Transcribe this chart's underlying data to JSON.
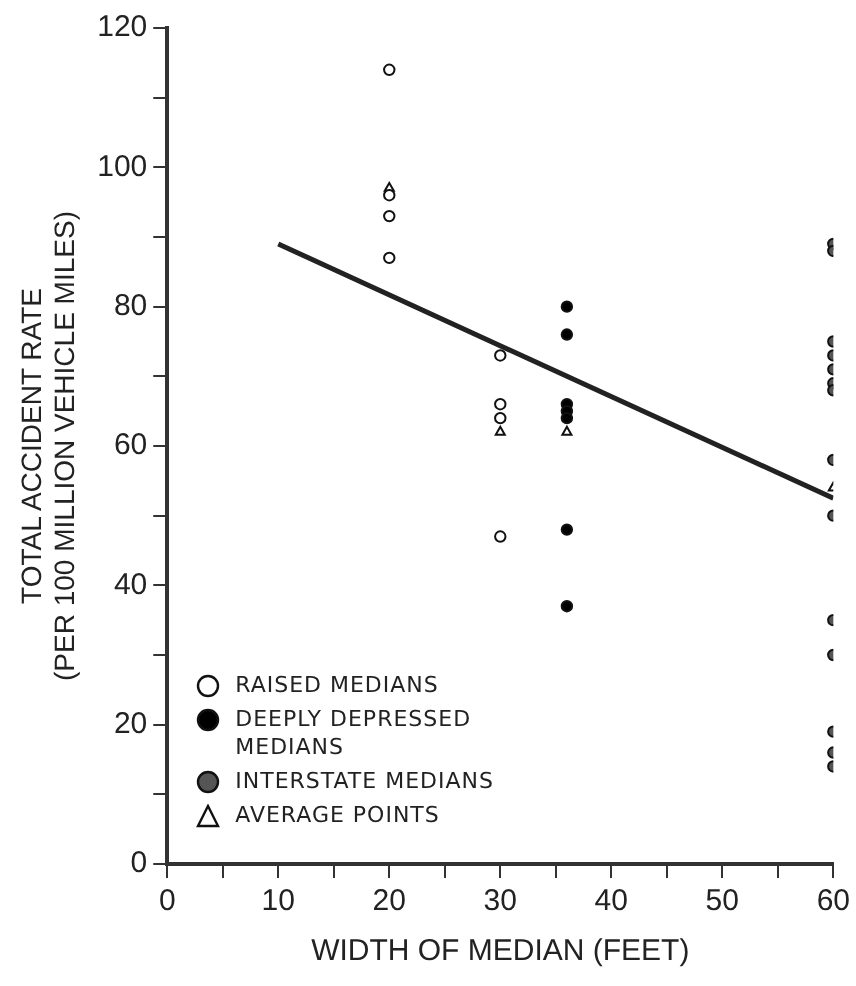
{
  "chart_data": {
    "type": "scatter",
    "xlabel": "WIDTH OF MEDIAN (FEET)",
    "ylabel": "TOTAL ACCIDENT RATE\n(PER 100 MILLION VEHICLE MILES)",
    "xlim": [
      0,
      60
    ],
    "ylim": [
      0,
      120
    ],
    "xticks": [
      0,
      {
        "value": 5,
        "label": null
      },
      10,
      {
        "value": 15,
        "label": null
      },
      20,
      {
        "value": 25,
        "label": null
      },
      30,
      {
        "value": 35,
        "label": null
      },
      40,
      {
        "value": 45,
        "label": null
      },
      50,
      {
        "value": 55,
        "label": null
      },
      60
    ],
    "yticks": [
      0,
      {
        "value": 10,
        "label": null
      },
      20,
      {
        "value": 30,
        "label": null
      },
      40,
      {
        "value": 50,
        "label": null
      },
      60,
      {
        "value": 70,
        "label": null
      },
      80,
      {
        "value": 90,
        "label": null
      },
      100,
      {
        "value": 110,
        "label": null
      },
      120
    ],
    "grid": false,
    "legend": "bottom left",
    "series": [
      {
        "name": "RAISED MEDIANS",
        "color": "#ffffff",
        "marker": "circle",
        "x": [
          20,
          20,
          20,
          20,
          30,
          30,
          30,
          30
        ],
        "values": [
          114,
          96,
          93,
          87,
          73,
          66,
          64,
          47
        ]
      },
      {
        "name": "DEEPLY DEPRESSED MEDIANS",
        "color": "#000000",
        "marker": "circle",
        "x": [
          36,
          36,
          36,
          36,
          36,
          36,
          36
        ],
        "values": [
          80,
          76,
          66,
          65,
          64,
          48,
          37
        ]
      },
      {
        "name": "INTERSTATE MEDIANS",
        "color": "#555555",
        "marker": "circle",
        "x": [
          60,
          60,
          60,
          60,
          60,
          60,
          60,
          60,
          60,
          60,
          60,
          60,
          60,
          60
        ],
        "values": [
          89,
          88,
          75,
          73,
          71,
          69,
          68,
          58,
          50,
          35,
          30,
          19,
          16,
          14
        ]
      },
      {
        "name": "AVERAGE POINTS",
        "color": "#ffffff",
        "marker": "triangle",
        "x": [
          20,
          30,
          36,
          60
        ],
        "values": [
          97,
          62,
          62,
          54
        ]
      },
      {
        "type": "line",
        "color": "#222222",
        "marker": "none",
        "x": [
          10,
          60
        ],
        "values": [
          89,
          52.5
        ]
      }
    ]
  }
}
